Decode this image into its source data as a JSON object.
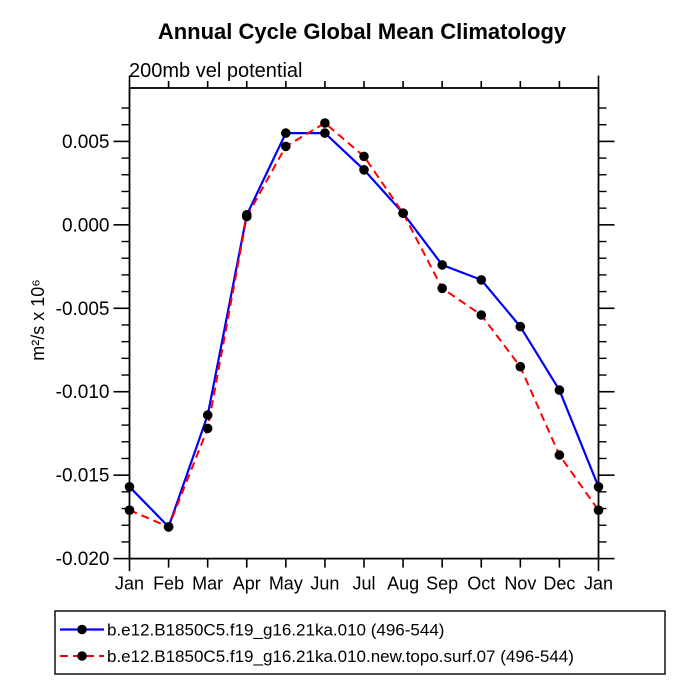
{
  "chart_data": {
    "type": "line",
    "title": "Annual Cycle Global Mean Climatology",
    "subtitle": "200mb vel potential",
    "ylabel": "m²/s x 10⁶",
    "xlabel": "",
    "categories": [
      "Jan",
      "Feb",
      "Mar",
      "Apr",
      "May",
      "Jun",
      "Jul",
      "Aug",
      "Sep",
      "Oct",
      "Nov",
      "Dec",
      "Jan"
    ],
    "y_ticks": {
      "values": [
        0.005,
        0.0,
        -0.005,
        -0.01,
        -0.015,
        -0.02
      ],
      "labels": [
        "0.005",
        "0.000",
        "-0.005",
        "-0.010",
        "-0.015",
        "-0.020"
      ]
    },
    "minor_tick_step": 0.001,
    "ylim": [
      -0.02,
      0.0082
    ],
    "grid": false,
    "legend_position": "bottom-left",
    "marker": "filled-circle",
    "marker_color": "#000000",
    "frame_color": "#000000",
    "series": [
      {
        "name": "b.e12.B1850C5.f19_g16.21ka.010 (496-544)",
        "color": "#0000ff",
        "style": "solid",
        "values": [
          -0.0157,
          -0.0181,
          -0.0114,
          0.0006,
          0.0055,
          0.0055,
          0.0033,
          0.0007,
          -0.0024,
          -0.0033,
          -0.0061,
          -0.0099,
          -0.0157
        ]
      },
      {
        "name": "b.e12.B1850C5.f19_g16.21ka.010.new.topo.surf.07 (496-544)",
        "color": "#ff0000",
        "style": "dashed",
        "values": [
          -0.0171,
          -0.0181,
          -0.0122,
          0.0005,
          0.0047,
          0.0061,
          0.0041,
          0.0007,
          -0.0038,
          -0.0054,
          -0.0085,
          -0.0138,
          -0.0171
        ]
      }
    ]
  }
}
